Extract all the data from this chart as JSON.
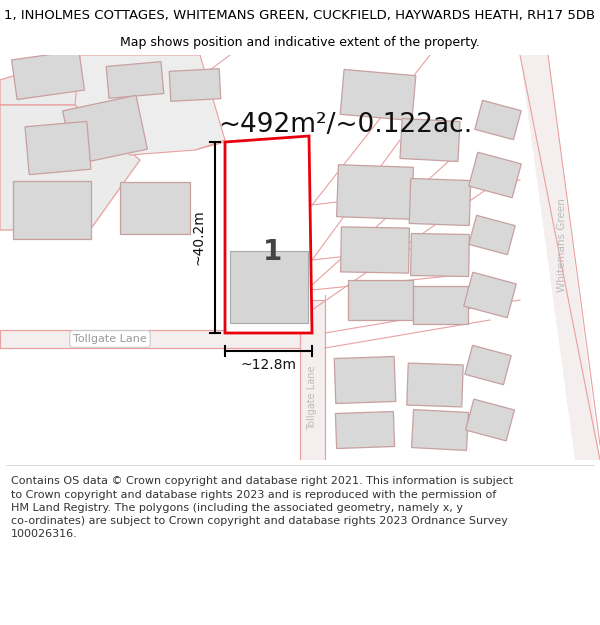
{
  "title_line1": "1, INHOLMES COTTAGES, WHITEMANS GREEN, CUCKFIELD, HAYWARDS HEATH, RH17 5DB",
  "title_line2": "Map shows position and indicative extent of the property.",
  "area_text": "~492m²/~0.122ac.",
  "dim_height": "~40.2m",
  "dim_width": "~12.8m",
  "label_number": "1",
  "road_label_h": "Tollgate Lane",
  "road_label_v1": "Tollgate Lane",
  "road_label_v2": "Whitemans Green",
  "footer_text": "Contains OS data © Crown copyright and database right 2021. This information is subject\nto Crown copyright and database rights 2023 and is reproduced with the permission of\nHM Land Registry. The polygons (including the associated geometry, namely x, y\nco-ordinates) are subject to Crown copyright and database rights 2023 Ordnance Survey\n100026316.",
  "bg_color": "#ffffff",
  "map_bg": "#faf5f5",
  "parcel_fill": "#ffffff",
  "parcel_edge": "#e8000a",
  "building_fill": "#d8d8d8",
  "building_edge": "#c8a0a0",
  "road_line_color": "#e8a0a0",
  "dim_line_color": "#000000",
  "title_fontsize": 9.5,
  "subtitle_fontsize": 9.0,
  "area_fontsize": 19,
  "label_fontsize": 20,
  "dim_fontsize": 10,
  "road_label_fontsize": 8,
  "footer_fontsize": 8.0,
  "title_weight": "normal"
}
